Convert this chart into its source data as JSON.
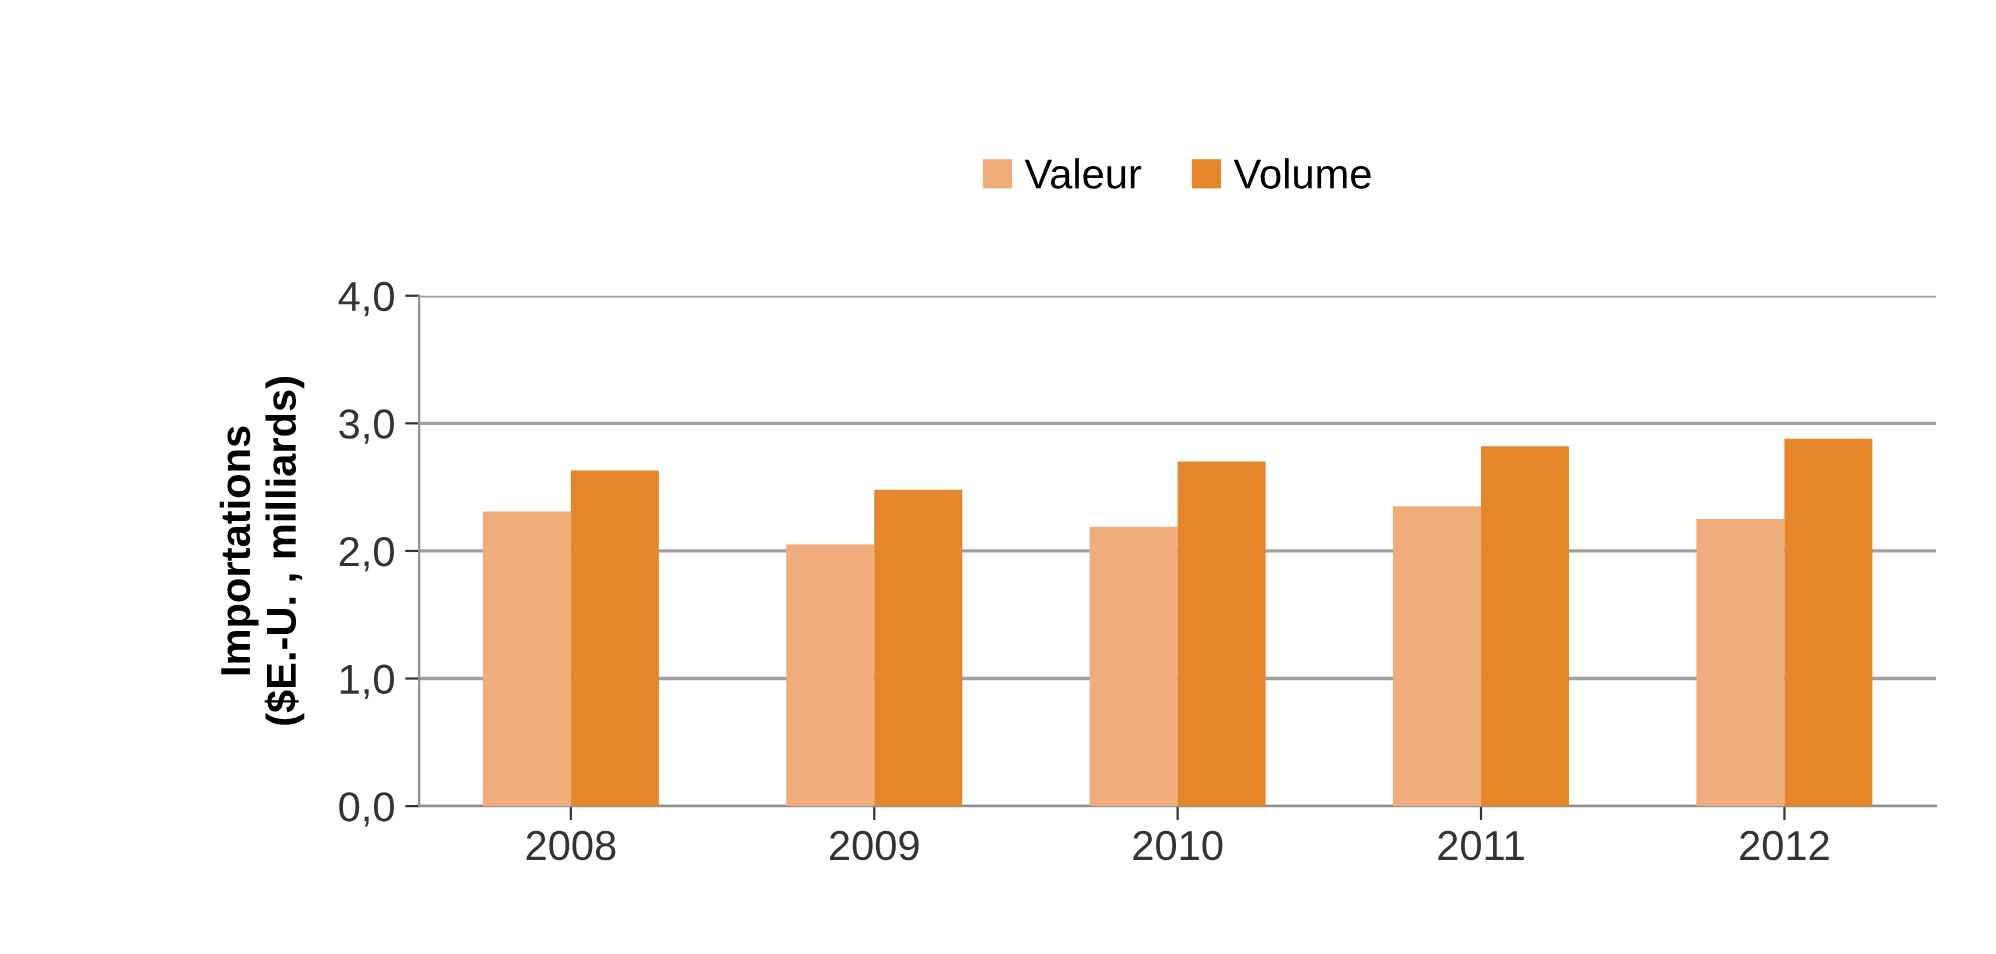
{
  "chart_data": {
    "type": "bar",
    "ylabel": "Importations\n($E.-U. , milliards)",
    "categories": [
      "2008",
      "2009",
      "2010",
      "2011",
      "2012"
    ],
    "series": [
      {
        "name": "Valeur",
        "color": "#f0ac7a",
        "values": [
          2.31,
          2.05,
          2.19,
          2.35,
          2.25
        ]
      },
      {
        "name": "Volume",
        "color": "#e6862a",
        "values": [
          2.63,
          2.48,
          2.7,
          2.82,
          2.88
        ]
      }
    ],
    "ylim": [
      0,
      4
    ],
    "yticks": [
      {
        "value": 0,
        "label": "0,0"
      },
      {
        "value": 1,
        "label": "1,0"
      },
      {
        "value": 2,
        "label": "2,0"
      },
      {
        "value": 3,
        "label": "3,0"
      },
      {
        "value": 4,
        "label": "4,0"
      }
    ],
    "grid": "y",
    "legend": "top"
  }
}
